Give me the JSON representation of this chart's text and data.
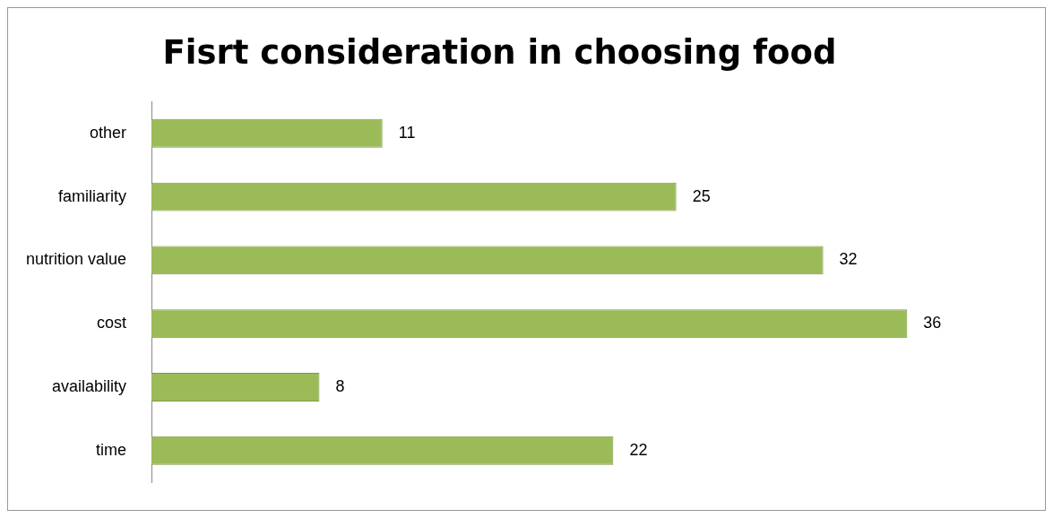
{
  "chart_data": {
    "type": "bar",
    "orientation": "horizontal",
    "title": "Fisrt consideration in choosing food",
    "categories": [
      "other",
      "familiarity",
      "nutrition value",
      "cost",
      "availability",
      "time"
    ],
    "values": [
      11,
      25,
      32,
      36,
      8,
      22
    ],
    "color": "#9bbb59",
    "data_labels": true,
    "grid": false,
    "legend": false
  }
}
